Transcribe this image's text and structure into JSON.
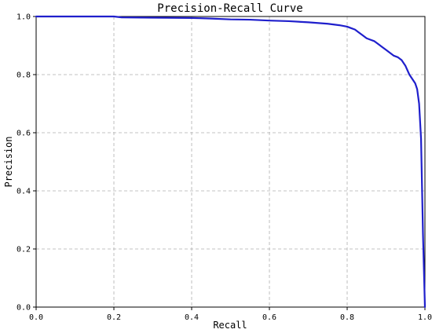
{
  "chart_data": {
    "type": "line",
    "title": "Precision-Recall Curve",
    "xlabel": "Recall",
    "ylabel": "Precision",
    "xlim": [
      0.0,
      1.0
    ],
    "ylim": [
      0.0,
      1.0
    ],
    "grid": true,
    "x_ticks": [
      "0.0",
      "0.2",
      "0.4",
      "0.6",
      "0.8",
      "1.0"
    ],
    "y_ticks": [
      "0.0",
      "0.2",
      "0.4",
      "0.6",
      "0.8",
      "1.0"
    ],
    "series": [
      {
        "color": "#1f1fcc",
        "x": [
          0.0,
          0.1,
          0.2,
          0.22,
          0.3,
          0.4,
          0.45,
          0.5,
          0.55,
          0.6,
          0.65,
          0.7,
          0.75,
          0.78,
          0.8,
          0.81,
          0.82,
          0.83,
          0.84,
          0.85,
          0.86,
          0.87,
          0.88,
          0.89,
          0.9,
          0.91,
          0.92,
          0.93,
          0.94,
          0.95,
          0.96,
          0.97,
          0.975,
          0.98,
          0.985,
          0.99,
          0.995,
          1.0
        ],
        "y": [
          1.0,
          1.0,
          1.0,
          0.997,
          0.996,
          0.995,
          0.993,
          0.99,
          0.989,
          0.986,
          0.984,
          0.98,
          0.975,
          0.97,
          0.965,
          0.96,
          0.955,
          0.945,
          0.935,
          0.925,
          0.92,
          0.915,
          0.905,
          0.895,
          0.885,
          0.875,
          0.865,
          0.86,
          0.85,
          0.83,
          0.8,
          0.78,
          0.77,
          0.75,
          0.7,
          0.58,
          0.25,
          0.0
        ]
      }
    ]
  }
}
